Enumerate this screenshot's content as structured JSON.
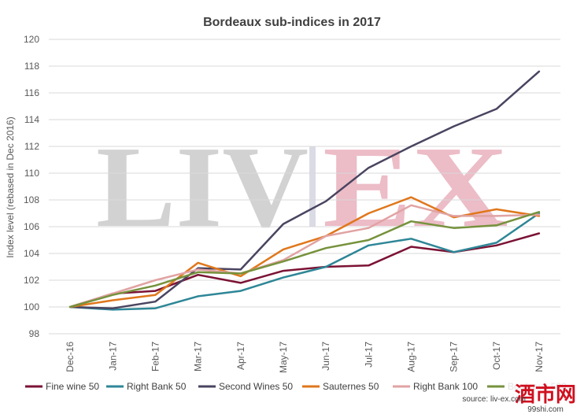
{
  "chart_data": {
    "type": "line",
    "title": "Bordeaux sub-indices in 2017",
    "xlabel": "",
    "ylabel": "Index level (rebased in Dec 2016)",
    "categories": [
      "Dec-16",
      "Jan-17",
      "Feb-17",
      "Mar-17",
      "Apr-17",
      "May-17",
      "Jun-17",
      "Jul-17",
      "Aug-17",
      "Sep-17",
      "Oct-17",
      "Nov-17"
    ],
    "ylim": [
      98,
      120
    ],
    "yticks": [
      98,
      100,
      102,
      104,
      106,
      108,
      110,
      112,
      114,
      116,
      118,
      120
    ],
    "grid": true,
    "legend_position": "bottom",
    "series": [
      {
        "name": "Fine wine 50",
        "color": "#7B1234",
        "values": [
          100,
          101.0,
          101.2,
          102.4,
          101.8,
          102.7,
          103.0,
          103.1,
          104.5,
          104.1,
          104.6,
          105.5
        ]
      },
      {
        "name": "Right Bank 50",
        "color": "#2E8697",
        "values": [
          100,
          99.8,
          99.9,
          100.8,
          101.2,
          102.2,
          103.0,
          104.6,
          105.1,
          104.1,
          104.8,
          107.0
        ]
      },
      {
        "name": "Second Wines 50",
        "color": "#4A4460",
        "values": [
          100,
          99.9,
          100.4,
          102.9,
          102.8,
          106.2,
          107.9,
          110.4,
          112.0,
          113.5,
          114.8,
          117.6
        ]
      },
      {
        "name": "Sauternes 50",
        "color": "#E0771C",
        "values": [
          100,
          100.5,
          100.9,
          103.3,
          102.3,
          104.3,
          105.3,
          107.0,
          108.2,
          106.7,
          107.3,
          106.8
        ]
      },
      {
        "name": "Right Bank 100",
        "color": "#E1A3A3",
        "values": [
          100,
          101.0,
          102.0,
          102.8,
          102.5,
          103.5,
          105.3,
          105.9,
          107.6,
          106.8,
          106.8,
          106.9
        ]
      },
      {
        "name": "Bordeaux 500",
        "color": "#76923C",
        "values": [
          100,
          100.9,
          101.6,
          102.6,
          102.5,
          103.4,
          104.4,
          105.0,
          106.4,
          105.9,
          106.1,
          107.1
        ]
      }
    ],
    "source": "source: liv-ex.com",
    "watermark": {
      "left": "LIV",
      "right": "EX"
    },
    "corner_logo": {
      "main": "酒市网",
      "sub": "99shi.com"
    }
  }
}
